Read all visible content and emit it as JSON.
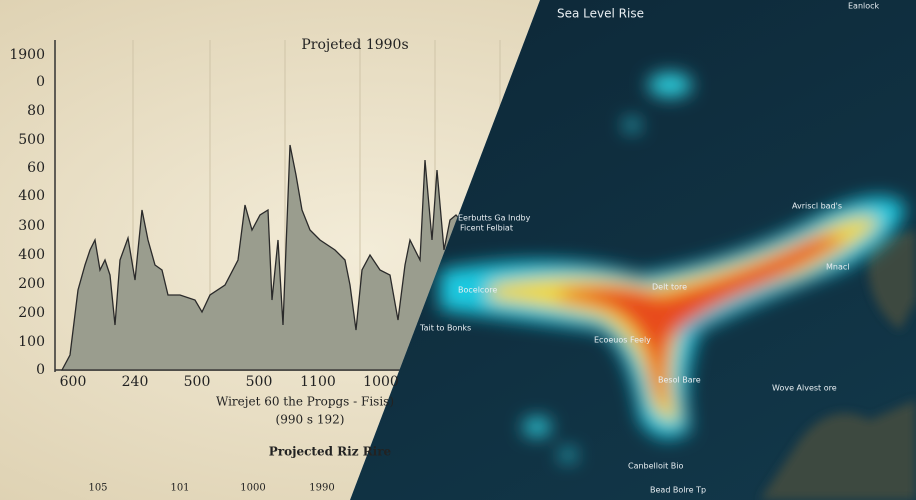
{
  "left_panel": {
    "title": "Projeted 1990s",
    "y_labels": [
      "1900",
      "0",
      "80",
      "500",
      "60",
      "400",
      "300",
      "400",
      "200",
      "200",
      "100",
      "0"
    ],
    "x_labels": [
      "600",
      "240",
      "500",
      "500",
      "1100",
      "1000"
    ],
    "caption": [
      "Wirejet 60 the Propgs - Fisis)",
      "(990 s 192)"
    ],
    "subtitle": "Projected Riz Rire",
    "footer_labels": [
      "105",
      "101",
      "1000",
      "1990"
    ]
  },
  "right_panel": {
    "title": "Sea Level Rise",
    "labels": [
      "Eanlock",
      "Eerbutts Ga Indby",
      "Ficent Felbiat",
      "Bocelcore",
      "Delt tore",
      "Ecoeuos Feely",
      "Avriscl bad's",
      "Mnacl",
      "Besol Bare",
      "Wove Alvest ore",
      "Canbelloit Bio",
      "Bead Bolre Tp",
      "Tait to Bonks"
    ]
  }
}
